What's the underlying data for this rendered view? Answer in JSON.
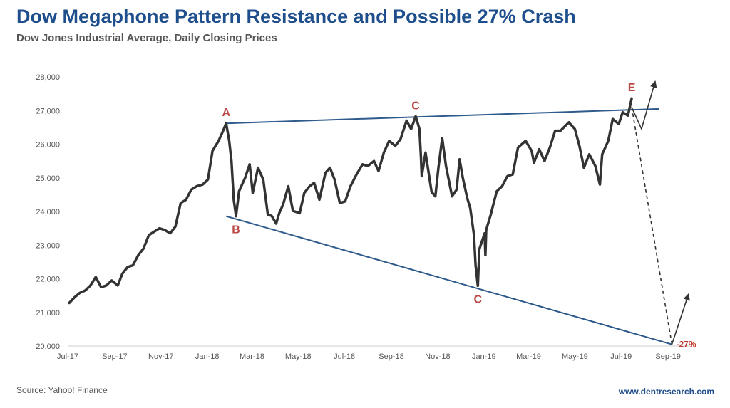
{
  "header": {
    "title": "Dow Megaphone Pattern Resistance and Possible 27% Crash",
    "subtitle": "Dow Jones Industrial Average, Daily Closing Prices"
  },
  "footer": {
    "source": "Source: Yahoo! Finance",
    "website": "www.dentresearch.com"
  },
  "chart_data": {
    "type": "line",
    "title": "Dow Megaphone Pattern Resistance and Possible 27% Crash",
    "subtitle": "Dow Jones Industrial Average, Daily Closing Prices",
    "xlabel": "",
    "ylabel": "",
    "ylim": [
      20000,
      28000
    ],
    "xlim": [
      "2017-07-01",
      "2019-09-30"
    ],
    "yticks": [
      20000,
      21000,
      22000,
      23000,
      24000,
      25000,
      26000,
      27000,
      28000
    ],
    "ytick_labels": [
      "20,000",
      "21,000",
      "22,000",
      "23,000",
      "24,000",
      "25,000",
      "26,000",
      "27,000",
      "28,000"
    ],
    "xtick_labels": [
      "Jul-17",
      "Sep-17",
      "Nov-17",
      "Jan-18",
      "Mar-18",
      "May-18",
      "Jul-18",
      "Sep-18",
      "Nov-18",
      "Jan-19",
      "Mar-19",
      "May-19",
      "Jul-19",
      "Sep-19"
    ],
    "xtick_dates": [
      "2017-07-01",
      "2017-09-01",
      "2017-11-01",
      "2018-01-01",
      "2018-03-01",
      "2018-05-01",
      "2018-07-01",
      "2018-09-01",
      "2018-11-01",
      "2019-01-01",
      "2019-03-01",
      "2019-05-01",
      "2019-07-01",
      "2019-09-01"
    ],
    "grid": false,
    "colors": {
      "price": "#333333",
      "trendline": "#2e5a8c",
      "labels": "#b94a48",
      "crash_label": "#c0392b"
    },
    "series": [
      {
        "values": [
          {
            "date": "2017-07-03",
            "y": 21280
          },
          {
            "date": "2017-07-10",
            "y": 21450
          },
          {
            "date": "2017-07-17",
            "y": 21580
          },
          {
            "date": "2017-07-24",
            "y": 21650
          },
          {
            "date": "2017-07-31",
            "y": 21800
          },
          {
            "date": "2017-08-07",
            "y": 22050
          },
          {
            "date": "2017-08-14",
            "y": 21750
          },
          {
            "date": "2017-08-21",
            "y": 21800
          },
          {
            "date": "2017-08-28",
            "y": 21950
          },
          {
            "date": "2017-09-05",
            "y": 21800
          },
          {
            "date": "2017-09-11",
            "y": 22150
          },
          {
            "date": "2017-09-18",
            "y": 22350
          },
          {
            "date": "2017-09-25",
            "y": 22400
          },
          {
            "date": "2017-10-02",
            "y": 22700
          },
          {
            "date": "2017-10-09",
            "y": 22900
          },
          {
            "date": "2017-10-16",
            "y": 23300
          },
          {
            "date": "2017-10-23",
            "y": 23400
          },
          {
            "date": "2017-10-30",
            "y": 23500
          },
          {
            "date": "2017-11-06",
            "y": 23450
          },
          {
            "date": "2017-11-13",
            "y": 23350
          },
          {
            "date": "2017-11-20",
            "y": 23550
          },
          {
            "date": "2017-11-27",
            "y": 24250
          },
          {
            "date": "2017-12-04",
            "y": 24350
          },
          {
            "date": "2017-12-11",
            "y": 24650
          },
          {
            "date": "2017-12-18",
            "y": 24750
          },
          {
            "date": "2017-12-26",
            "y": 24800
          },
          {
            "date": "2018-01-02",
            "y": 24950
          },
          {
            "date": "2018-01-08",
            "y": 25800
          },
          {
            "date": "2018-01-16",
            "y": 26100
          },
          {
            "date": "2018-01-22",
            "y": 26400
          },
          {
            "date": "2018-01-26",
            "y": 26620
          },
          {
            "date": "2018-01-30",
            "y": 26100
          },
          {
            "date": "2018-02-02",
            "y": 25500
          },
          {
            "date": "2018-02-05",
            "y": 24350
          },
          {
            "date": "2018-02-08",
            "y": 23860
          },
          {
            "date": "2018-02-12",
            "y": 24600
          },
          {
            "date": "2018-02-20",
            "y": 25000
          },
          {
            "date": "2018-02-26",
            "y": 25400
          },
          {
            "date": "2018-03-02",
            "y": 24550
          },
          {
            "date": "2018-03-09",
            "y": 25300
          },
          {
            "date": "2018-03-16",
            "y": 24950
          },
          {
            "date": "2018-03-22",
            "y": 23900
          },
          {
            "date": "2018-03-27",
            "y": 23870
          },
          {
            "date": "2018-04-02",
            "y": 23640
          },
          {
            "date": "2018-04-06",
            "y": 23950
          },
          {
            "date": "2018-04-11",
            "y": 24200
          },
          {
            "date": "2018-04-18",
            "y": 24750
          },
          {
            "date": "2018-04-24",
            "y": 24020
          },
          {
            "date": "2018-05-03",
            "y": 23950
          },
          {
            "date": "2018-05-09",
            "y": 24550
          },
          {
            "date": "2018-05-16",
            "y": 24750
          },
          {
            "date": "2018-05-22",
            "y": 24850
          },
          {
            "date": "2018-05-29",
            "y": 24350
          },
          {
            "date": "2018-06-06",
            "y": 25150
          },
          {
            "date": "2018-06-12",
            "y": 25300
          },
          {
            "date": "2018-06-18",
            "y": 24950
          },
          {
            "date": "2018-06-25",
            "y": 24250
          },
          {
            "date": "2018-07-02",
            "y": 24300
          },
          {
            "date": "2018-07-09",
            "y": 24750
          },
          {
            "date": "2018-07-17",
            "y": 25100
          },
          {
            "date": "2018-07-25",
            "y": 25400
          },
          {
            "date": "2018-08-01",
            "y": 25350
          },
          {
            "date": "2018-08-09",
            "y": 25500
          },
          {
            "date": "2018-08-15",
            "y": 25200
          },
          {
            "date": "2018-08-22",
            "y": 25750
          },
          {
            "date": "2018-08-29",
            "y": 26100
          },
          {
            "date": "2018-09-06",
            "y": 25950
          },
          {
            "date": "2018-09-13",
            "y": 26150
          },
          {
            "date": "2018-09-21",
            "y": 26700
          },
          {
            "date": "2018-09-27",
            "y": 26450
          },
          {
            "date": "2018-10-03",
            "y": 26830
          },
          {
            "date": "2018-10-08",
            "y": 26450
          },
          {
            "date": "2018-10-10",
            "y": 25600
          },
          {
            "date": "2018-10-11",
            "y": 25050
          },
          {
            "date": "2018-10-16",
            "y": 25750
          },
          {
            "date": "2018-10-24",
            "y": 24580
          },
          {
            "date": "2018-10-29",
            "y": 24450
          },
          {
            "date": "2018-11-02",
            "y": 25300
          },
          {
            "date": "2018-11-07",
            "y": 26180
          },
          {
            "date": "2018-11-12",
            "y": 25350
          },
          {
            "date": "2018-11-20",
            "y": 24450
          },
          {
            "date": "2018-11-26",
            "y": 24650
          },
          {
            "date": "2018-11-30",
            "y": 25550
          },
          {
            "date": "2018-12-04",
            "y": 25020
          },
          {
            "date": "2018-12-10",
            "y": 24400
          },
          {
            "date": "2018-12-14",
            "y": 24100
          },
          {
            "date": "2018-12-19",
            "y": 23300
          },
          {
            "date": "2018-12-21",
            "y": 22400
          },
          {
            "date": "2018-12-24",
            "y": 21790
          },
          {
            "date": "2018-12-26",
            "y": 22880
          },
          {
            "date": "2019-01-02",
            "y": 23350
          },
          {
            "date": "2019-01-03",
            "y": 22700
          },
          {
            "date": "2019-01-04",
            "y": 23450
          },
          {
            "date": "2019-01-10",
            "y": 23900
          },
          {
            "date": "2019-01-18",
            "y": 24600
          },
          {
            "date": "2019-01-25",
            "y": 24750
          },
          {
            "date": "2019-02-01",
            "y": 25050
          },
          {
            "date": "2019-02-08",
            "y": 25100
          },
          {
            "date": "2019-02-15",
            "y": 25900
          },
          {
            "date": "2019-02-25",
            "y": 26100
          },
          {
            "date": "2019-03-05",
            "y": 25800
          },
          {
            "date": "2019-03-08",
            "y": 25450
          },
          {
            "date": "2019-03-15",
            "y": 25850
          },
          {
            "date": "2019-03-22",
            "y": 25500
          },
          {
            "date": "2019-03-29",
            "y": 25900
          },
          {
            "date": "2019-04-05",
            "y": 26400
          },
          {
            "date": "2019-04-12",
            "y": 26400
          },
          {
            "date": "2019-04-23",
            "y": 26650
          },
          {
            "date": "2019-05-01",
            "y": 26450
          },
          {
            "date": "2019-05-07",
            "y": 25950
          },
          {
            "date": "2019-05-13",
            "y": 25300
          },
          {
            "date": "2019-05-20",
            "y": 25700
          },
          {
            "date": "2019-05-28",
            "y": 25350
          },
          {
            "date": "2019-06-03",
            "y": 24800
          },
          {
            "date": "2019-06-06",
            "y": 25700
          },
          {
            "date": "2019-06-14",
            "y": 26100
          },
          {
            "date": "2019-06-20",
            "y": 26750
          },
          {
            "date": "2019-06-28",
            "y": 26600
          },
          {
            "date": "2019-07-03",
            "y": 26950
          },
          {
            "date": "2019-07-10",
            "y": 26850
          },
          {
            "date": "2019-07-15",
            "y": 27360
          }
        ]
      }
    ],
    "annotations": [
      {
        "text": "A",
        "date": "2018-01-26",
        "y": 26620,
        "position": "above"
      },
      {
        "text": "B",
        "date": "2018-02-08",
        "y": 23860,
        "position": "below"
      },
      {
        "text": "C",
        "date": "2018-10-03",
        "y": 26830,
        "position": "above"
      },
      {
        "text": "C",
        "date": "2018-12-24",
        "y": 21790,
        "position": "below"
      },
      {
        "text": "E",
        "date": "2019-07-15",
        "y": 27360,
        "position": "above"
      },
      {
        "text": "-27%",
        "date": "2019-09-06",
        "y": 20050,
        "position": "right"
      }
    ],
    "trendlines": [
      {
        "name": "upper",
        "from": {
          "date": "2018-01-26",
          "y": 26620
        },
        "to": {
          "date": "2019-08-20",
          "y": 27050
        }
      },
      {
        "name": "lower",
        "from": {
          "date": "2018-01-26",
          "y": 23860
        },
        "to": {
          "date": "2019-09-06",
          "y": 20050
        }
      }
    ],
    "projections": [
      {
        "style": "dashed",
        "points": [
          {
            "date": "2019-07-15",
            "y": 27100
          },
          {
            "date": "2019-09-06",
            "y": 20050
          }
        ]
      },
      {
        "style": "arrow",
        "points": [
          {
            "date": "2019-07-15",
            "y": 27100
          },
          {
            "date": "2019-07-28",
            "y": 26450
          },
          {
            "date": "2019-08-15",
            "y": 27870
          }
        ]
      },
      {
        "style": "arrow",
        "points": [
          {
            "date": "2019-09-06",
            "y": 20050
          },
          {
            "date": "2019-09-28",
            "y": 21550
          }
        ]
      }
    ]
  }
}
